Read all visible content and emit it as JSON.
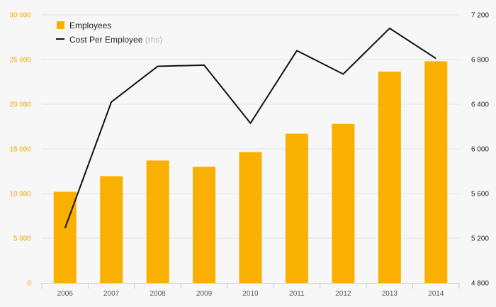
{
  "chart_data": {
    "type": "bar",
    "categories": [
      "2006",
      "2007",
      "2008",
      "2009",
      "2010",
      "2011",
      "2012",
      "2013",
      "2014"
    ],
    "series": [
      {
        "name": "Employees",
        "type": "bar",
        "axis": "left",
        "color": "#f9b000",
        "values": [
          10200,
          11950,
          13700,
          13000,
          14650,
          16700,
          17800,
          23650,
          24800
        ]
      },
      {
        "name": "Cost Per Employee",
        "name_suffix": "(rhs)",
        "type": "line",
        "axis": "right",
        "color": "#111111",
        "values": [
          5290,
          6420,
          6740,
          6750,
          6230,
          6880,
          6670,
          7080,
          6810
        ]
      }
    ],
    "left_axis": {
      "ylim": [
        0,
        30000
      ],
      "ticks": [
        0,
        5000,
        10000,
        15000,
        20000,
        25000,
        30000
      ],
      "tick_labels": [
        "0",
        "5 000",
        "10 000",
        "15 000",
        "20 000",
        "25 000",
        "30 000"
      ],
      "color": "#f2a900"
    },
    "right_axis": {
      "ylim": [
        4800,
        7200
      ],
      "ticks": [
        4800,
        5200,
        5600,
        6000,
        6400,
        6800,
        7200
      ],
      "tick_labels": [
        "4 800",
        "5 200",
        "5 600",
        "6 000",
        "6 400",
        "6 800",
        "7 200"
      ],
      "color": "#222222"
    },
    "grid": true,
    "legend": "top-left",
    "title": "",
    "xlabel": "",
    "ylabel": ""
  }
}
